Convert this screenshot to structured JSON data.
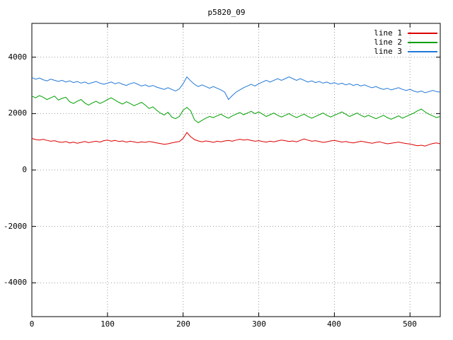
{
  "chart_data": {
    "type": "line",
    "title": "p5820_09",
    "xlabel": "",
    "ylabel": "",
    "xlim": [
      0,
      540
    ],
    "ylim": [
      -5200,
      5200
    ],
    "grid": true,
    "legend_position": "top-right",
    "x_ticks": [
      0,
      100,
      200,
      300,
      400,
      500
    ],
    "x_tick_labels": [
      "0",
      "100",
      "200",
      "300",
      "400",
      "500"
    ],
    "y_ticks": [
      4000,
      2000,
      0,
      -2000,
      -4000
    ],
    "y_tick_labels": [
      "4000",
      "2000",
      "0",
      "-2000",
      "-4000"
    ],
    "x_start": 0,
    "x_step": 5,
    "series": [
      {
        "name": "line 1",
        "color": "#dc0000",
        "values": [
          1120,
          1080,
          1060,
          1090,
          1050,
          1020,
          1040,
          1000,
          980,
          1010,
          960,
          990,
          950,
          980,
          1010,
          970,
          1000,
          1020,
          990,
          1040,
          1060,
          1020,
          1050,
          1010,
          1030,
          990,
          1020,
          1000,
          970,
          1000,
          980,
          1010,
          990,
          960,
          940,
          910,
          930,
          960,
          990,
          1010,
          1120,
          1330,
          1180,
          1080,
          1030,
          1000,
          1030,
          1010,
          980,
          1020,
          1000,
          1030,
          1050,
          1020,
          1060,
          1090,
          1060,
          1080,
          1050,
          1020,
          1040,
          1010,
          990,
          1020,
          1000,
          1030,
          1060,
          1040,
          1010,
          1030,
          1000,
          1050,
          1100,
          1060,
          1020,
          1040,
          1010,
          980,
          1000,
          1030,
          1050,
          1020,
          990,
          1010,
          980,
          960,
          990,
          1020,
          1000,
          970,
          950,
          980,
          1000,
          960,
          930,
          950,
          970,
          990,
          960,
          940,
          920,
          890,
          860,
          880,
          850,
          900,
          940,
          960,
          930
        ]
      },
      {
        "name": "line 2",
        "color": "#00a000",
        "values": [
          2620,
          2560,
          2640,
          2580,
          2500,
          2560,
          2620,
          2480,
          2540,
          2580,
          2420,
          2360,
          2440,
          2500,
          2380,
          2300,
          2380,
          2440,
          2360,
          2420,
          2500,
          2560,
          2480,
          2400,
          2340,
          2420,
          2360,
          2280,
          2340,
          2400,
          2300,
          2180,
          2240,
          2120,
          2020,
          1950,
          2050,
          1880,
          1820,
          1900,
          2120,
          2220,
          2100,
          1780,
          1680,
          1760,
          1840,
          1900,
          1860,
          1920,
          1980,
          1900,
          1840,
          1920,
          1980,
          2040,
          1960,
          2020,
          2080,
          2000,
          2060,
          1980,
          1900,
          1960,
          2020,
          1940,
          1880,
          1940,
          2000,
          1920,
          1860,
          1920,
          1980,
          1900,
          1840,
          1900,
          1960,
          2020,
          1940,
          1880,
          1940,
          2000,
          2060,
          1980,
          1900,
          1960,
          2020,
          1940,
          1880,
          1940,
          1880,
          1820,
          1880,
          1940,
          1860,
          1800,
          1860,
          1920,
          1840,
          1900,
          1960,
          2020,
          2100,
          2160,
          2060,
          1980,
          1920,
          1860,
          1900
        ]
      },
      {
        "name": "line 3",
        "color": "#2178d6",
        "values": [
          3280,
          3220,
          3260,
          3200,
          3160,
          3220,
          3180,
          3140,
          3180,
          3120,
          3160,
          3100,
          3140,
          3080,
          3120,
          3060,
          3100,
          3140,
          3080,
          3040,
          3080,
          3120,
          3060,
          3100,
          3040,
          3000,
          3060,
          3100,
          3040,
          2980,
          3020,
          2960,
          3000,
          2940,
          2900,
          2860,
          2920,
          2860,
          2800,
          2880,
          3060,
          3300,
          3160,
          3040,
          2960,
          3020,
          2960,
          2900,
          2960,
          2900,
          2840,
          2760,
          2500,
          2640,
          2760,
          2840,
          2920,
          2980,
          3040,
          2980,
          3060,
          3120,
          3180,
          3120,
          3180,
          3240,
          3180,
          3240,
          3300,
          3240,
          3180,
          3240,
          3180,
          3120,
          3160,
          3100,
          3140,
          3080,
          3120,
          3060,
          3100,
          3040,
          3080,
          3020,
          3060,
          3000,
          3040,
          2980,
          3020,
          2960,
          2920,
          2960,
          2900,
          2860,
          2900,
          2840,
          2880,
          2920,
          2860,
          2820,
          2860,
          2800,
          2760,
          2800,
          2740,
          2780,
          2820,
          2780,
          2760
        ]
      }
    ]
  }
}
